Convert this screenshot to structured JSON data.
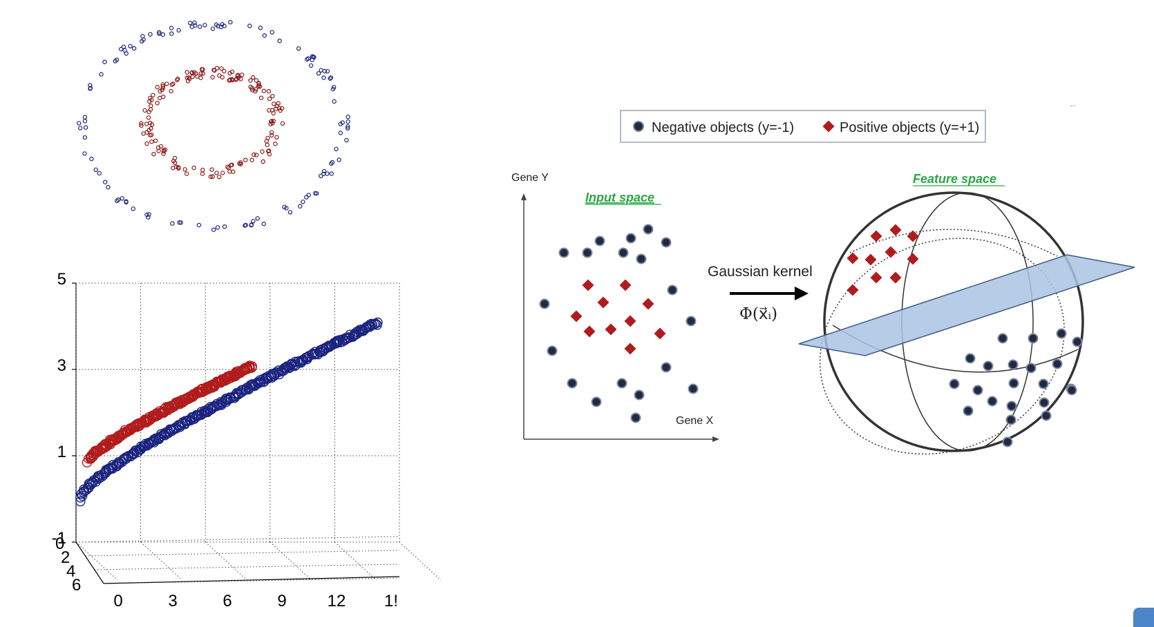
{
  "colors": {
    "negative": "#1f2b45",
    "positive": "#b01c1c",
    "outer_ring": "#1a237e",
    "inner_ring": "#8b1a1a",
    "plane_fill": "#a9c3e3",
    "plane_stroke": "#3d5b85",
    "green_title": "#2aa645",
    "corner_badge": "#4a86c8"
  },
  "chart_data": [
    {
      "type": "scatter",
      "title": "",
      "xlabel": "",
      "ylabel": "",
      "series": [
        {
          "shape": "ring",
          "radius": 2.0,
          "points": 120
        },
        {
          "shape": "ring",
          "radius": 1.0,
          "points": 160
        }
      ]
    },
    {
      "type": "scatter",
      "dimensions": 3,
      "xlim": [
        0,
        15
      ],
      "ylim": [
        -1,
        5
      ],
      "zlim": [
        0,
        6
      ],
      "x_ticks": [
        "0",
        "3",
        "6",
        "9",
        "12",
        "1!"
      ],
      "y_ticks": [
        "5",
        "3",
        "1",
        "-1"
      ],
      "z_ticks": [
        "0",
        "2",
        "4",
        "6"
      ],
      "grid": true,
      "series": [
        {
          "x_range": [
            0.5,
            7
          ],
          "y_range": [
            0.8,
            3.1
          ]
        },
        {
          "x_range": [
            0,
            15
          ],
          "y_range": [
            0,
            4
          ]
        }
      ]
    }
  ],
  "diagram": {
    "legend": {
      "negative_label": "Negative objects (y=-1)",
      "positive_label": "Positive objects (y=+1)"
    },
    "input_space": {
      "title": "Input space",
      "y_axis_label": "Gene Y",
      "x_axis_label": "Gene X"
    },
    "transform": {
      "kernel_label": "Gaussian kernel",
      "mapping_label": "Φ(x⃗ᵢ)"
    },
    "feature_space": {
      "title": "Feature space"
    },
    "corner_mark": "--"
  }
}
